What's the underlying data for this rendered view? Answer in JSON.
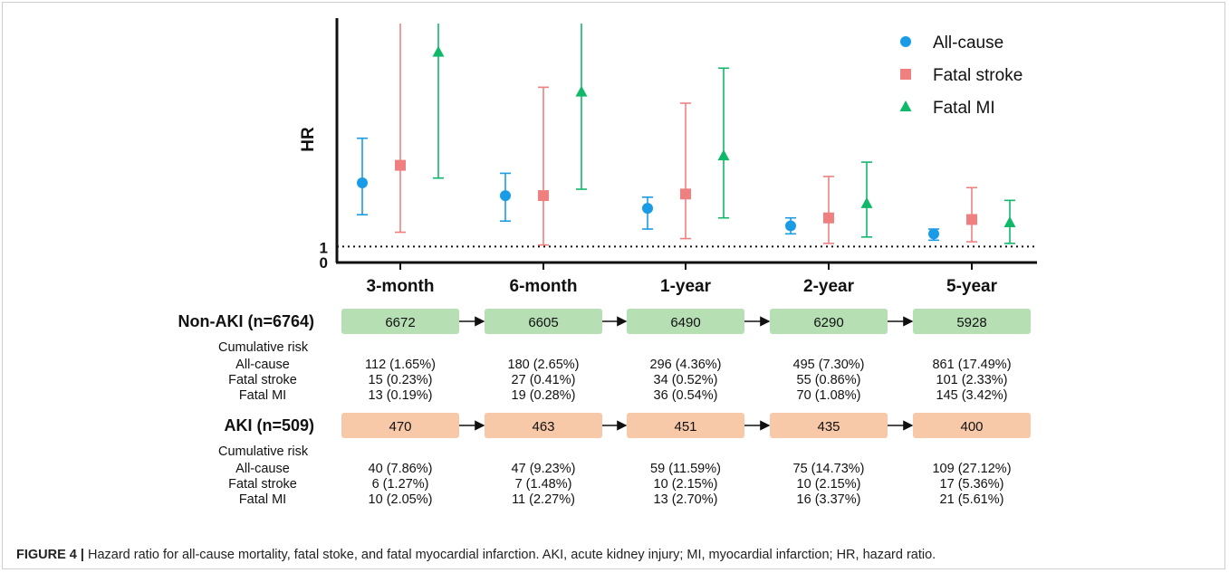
{
  "chart_data": {
    "type": "scatter",
    "subtype": "point-estimate-with-error-bars",
    "ylabel": "HR",
    "xlabel": "",
    "title": "",
    "y_tick_labels": [
      "0",
      "1"
    ],
    "reference_line": {
      "y": 1,
      "style": "dotted"
    },
    "categories": [
      "3-month",
      "6-month",
      "1-year",
      "2-year",
      "5-year"
    ],
    "legend_position": "top-right",
    "series": [
      {
        "name": "All-cause",
        "marker": "circle",
        "color": "#1a9be6",
        "values": [
          5.0,
          4.2,
          3.4,
          2.3,
          1.8
        ],
        "lower": [
          3.0,
          2.6,
          2.1,
          1.8,
          1.4
        ],
        "upper": [
          7.8,
          5.6,
          4.1,
          2.8,
          2.1
        ]
      },
      {
        "name": "Fatal stroke",
        "marker": "square",
        "color": "#f08080",
        "values": [
          6.1,
          4.2,
          4.3,
          2.8,
          2.7
        ],
        "lower": [
          1.9,
          1.1,
          1.5,
          1.2,
          1.3
        ],
        "upper": [
          15.0,
          11.0,
          10.0,
          5.4,
          4.7
        ],
        "upper_clipped": true
      },
      {
        "name": "Fatal MI",
        "marker": "triangle",
        "color": "#10b86a",
        "values": [
          13.2,
          10.7,
          6.7,
          3.7,
          2.5
        ],
        "lower": [
          5.3,
          4.6,
          2.8,
          1.6,
          1.2
        ],
        "upper": [
          15.0,
          15.0,
          12.2,
          6.3,
          3.9
        ],
        "upper_clipped": true
      }
    ]
  },
  "table": {
    "groups": [
      {
        "label": "Non-AKI (n=6764)",
        "color": "#b6dfb4",
        "counts": [
          "6672",
          "6605",
          "6490",
          "6290",
          "5928"
        ],
        "section_label": "Cumulative risk",
        "rows": [
          {
            "label": "All-cause",
            "values": [
              "112 (1.65%)",
              "180 (2.65%)",
              "296 (4.36%)",
              "495 (7.30%)",
              "861 (17.49%)"
            ]
          },
          {
            "label": "Fatal stroke",
            "values": [
              "15 (0.23%)",
              "27 (0.41%)",
              "34 (0.52%)",
              "55 (0.86%)",
              "101 (2.33%)"
            ]
          },
          {
            "label": "Fatal MI",
            "values": [
              "13 (0.19%)",
              "19 (0.28%)",
              "36 (0.54%)",
              "70 (1.08%)",
              "145 (3.42%)"
            ]
          }
        ]
      },
      {
        "label": "AKI (n=509)",
        "color": "#f8c9a8",
        "counts": [
          "470",
          "463",
          "451",
          "435",
          "400"
        ],
        "section_label": "Cumulative risk",
        "rows": [
          {
            "label": "All-cause",
            "values": [
              "40 (7.86%)",
              "47 (9.23%)",
              "59 (11.59%)",
              "75 (14.73%)",
              "109 (27.12%)"
            ]
          },
          {
            "label": "Fatal stroke",
            "values": [
              "6 (1.27%)",
              "7 (1.48%)",
              "10 (2.15%)",
              "10 (2.15%)",
              "17 (5.36%)"
            ]
          },
          {
            "label": "Fatal MI",
            "values": [
              "10 (2.05%)",
              "11 (2.27%)",
              "13 (2.70%)",
              "16 (3.37%)",
              "21 (5.61%)"
            ]
          }
        ]
      }
    ]
  },
  "caption": {
    "label": "FIGURE 4 |",
    "text": " Hazard ratio for all-cause mortality, fatal stoke, and fatal myocardial infarction. AKI, acute kidney injury; MI, myocardial infarction; HR, hazard ratio."
  }
}
